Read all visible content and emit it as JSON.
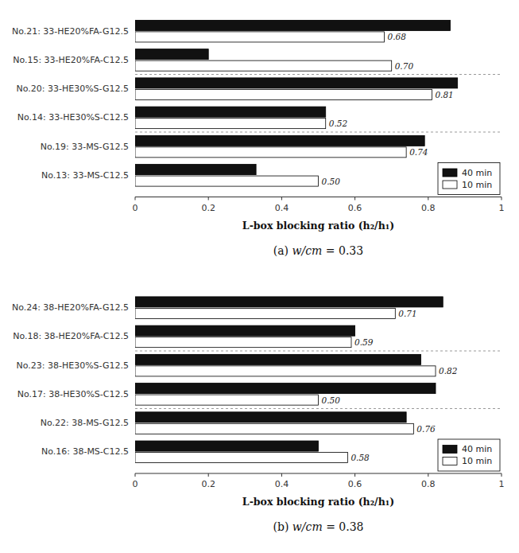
{
  "chart_data": [
    {
      "type": "bar",
      "orientation": "horizontal",
      "subtitle": "(a) w/cm = 0.33",
      "xlabel": "L-box blocking ratio (h₂/h₁)",
      "categories": [
        "No.21: 33-HE20%FA-G12.5",
        "No.15: 33-HE20%FA-C12.5",
        "No.20: 33-HE30%S-G12.5",
        "No.14: 33-HE30%S-C12.5",
        "No.19: 33-MS-G12.5",
        "No.13: 33-MS-C12.5"
      ],
      "series": [
        {
          "name": "40 min",
          "color": "#111111",
          "values": [
            0.86,
            0.2,
            0.88,
            0.52,
            0.79,
            0.33
          ]
        },
        {
          "name": "10 min",
          "color": "#ffffff",
          "values": [
            0.68,
            0.7,
            0.81,
            0.52,
            0.74,
            0.5
          ],
          "data_labels": true,
          "value_labels": [
            "0.68",
            "0.70",
            "0.81",
            "0.52",
            "0.74",
            "0.50"
          ]
        }
      ],
      "xlim": [
        0,
        1
      ],
      "xticks": [
        0,
        0.2,
        0.4,
        0.6,
        0.8,
        1
      ],
      "legend": "lower right",
      "grid": false
    },
    {
      "type": "bar",
      "orientation": "horizontal",
      "subtitle": "(b) w/cm = 0.38",
      "xlabel": "L-box blocking ratio (h₂/h₁)",
      "categories": [
        "No.24: 38-HE20%FA-G12.5",
        "No.18: 38-HE20%FA-C12.5",
        "No.23: 38-HE30%S-G12.5",
        "No.17: 38-HE30%S-C12.5",
        "No.22: 38-MS-G12.5",
        "No.16: 38-MS-C12.5"
      ],
      "series": [
        {
          "name": "40 min",
          "color": "#111111",
          "values": [
            0.84,
            0.6,
            0.78,
            0.82,
            0.74,
            0.5
          ]
        },
        {
          "name": "10 min",
          "color": "#ffffff",
          "values": [
            0.71,
            0.59,
            0.82,
            0.5,
            0.76,
            0.58
          ],
          "data_labels": true,
          "value_labels": [
            "0.71",
            "0.59",
            "0.82",
            "0.50",
            "0.76",
            "0.58"
          ]
        }
      ],
      "xlim": [
        0,
        1
      ],
      "xticks": [
        0,
        0.2,
        0.4,
        0.6,
        0.8,
        1
      ],
      "legend": "lower right",
      "grid": false
    }
  ]
}
